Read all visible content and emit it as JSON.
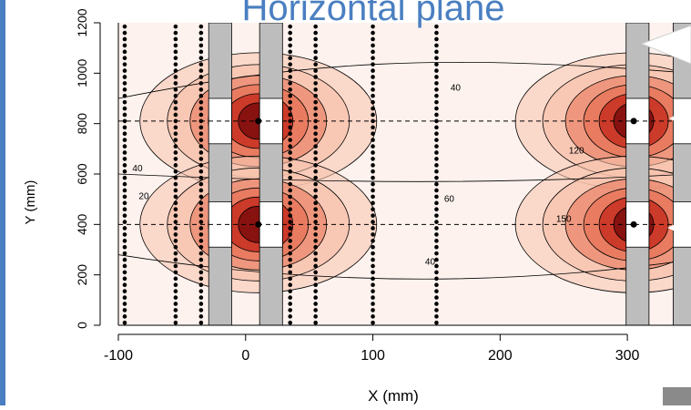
{
  "chart_data": {
    "type": "heatmap",
    "title": "Horizontal plane",
    "xlabel": "X (mm)",
    "ylabel": "Y (mm)",
    "xlim": [
      -100,
      350
    ],
    "ylim": [
      0,
      1200
    ],
    "x_ticks": [
      -100,
      0,
      100,
      200,
      300
    ],
    "y_ticks": [
      0,
      200,
      400,
      600,
      800,
      1000,
      1200
    ],
    "grid": false,
    "colormap": [
      "#fdf2ee",
      "#f7c3ad",
      "#e8765a",
      "#c42a1c",
      "#7a0c0c"
    ],
    "hot_spots": [
      {
        "x": 10,
        "y": 810,
        "peak": 200
      },
      {
        "x": 10,
        "y": 400,
        "peak": 200
      },
      {
        "x": 305,
        "y": 810,
        "peak": 200
      },
      {
        "x": 305,
        "y": 400,
        "peak": 200
      }
    ],
    "dashed_lines_y": [
      810,
      400
    ],
    "electrodes_x": [
      -20,
      20,
      308,
      345
    ],
    "electrode_gaps_y": [
      [
        720,
        900
      ],
      [
        310,
        490
      ]
    ],
    "electrode_color": "#bdbdbd",
    "measurement_lines_x": [
      -95,
      -55,
      -35,
      35,
      55,
      100,
      150
    ],
    "contour_labels": [
      {
        "text": "40",
        "x": 165,
        "y": 940
      },
      {
        "text": "40",
        "x": -85,
        "y": 620
      },
      {
        "text": "20",
        "x": -80,
        "y": 510
      },
      {
        "text": "60",
        "x": 160,
        "y": 500
      },
      {
        "text": "40",
        "x": 145,
        "y": 250
      },
      {
        "text": "120",
        "x": 260,
        "y": 690
      },
      {
        "text": "150",
        "x": 250,
        "y": 420
      }
    ]
  }
}
